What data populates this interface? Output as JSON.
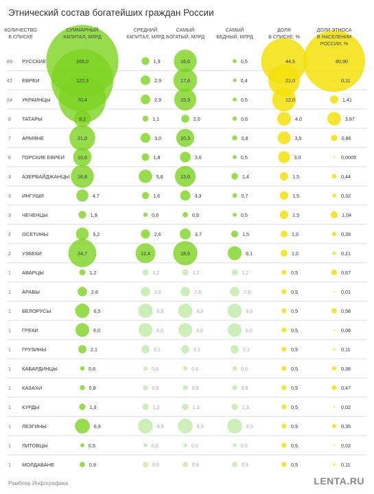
{
  "title": "Этнический состав богатейших граждан России",
  "footer": {
    "left": "Рамблер Инфографика",
    "right": "LENTA.RU"
  },
  "colors": {
    "green": "#7dd321",
    "yellow": "#f4e10b",
    "divider": "#dddddd",
    "muted_green": "#c6ecb0"
  },
  "chart_data": {
    "type": "table",
    "columns": [
      {
        "key": "count",
        "label": [
          "КОЛИЧЕСТВО",
          "В СПИСКЕ"
        ]
      },
      {
        "key": "ethnos",
        "label": []
      },
      {
        "key": "total",
        "label": [
          "СУММАРНЫЙ",
          "КАПИТАЛ, МЛРД"
        ],
        "color": "green"
      },
      {
        "key": "avg",
        "label": [
          "СРЕДНИЙ",
          "КАПИТАЛ, МЛРД"
        ],
        "color": "green"
      },
      {
        "key": "richest",
        "label": [
          "САМЫЙ",
          "БОГАТЫЙ, МЛРД"
        ],
        "color": "green"
      },
      {
        "key": "poorest",
        "label": [
          "САМЫЙ",
          "БЕДНЫЙ, МЛРД"
        ],
        "color": "green"
      },
      {
        "key": "share_list",
        "label": [
          "ДОЛЯ",
          "В СПИСКЕ, %"
        ],
        "color": "yellow"
      },
      {
        "key": "share_pop",
        "label": [
          "ДОЛЯ ЭТНОСА",
          "В НАСЕЛЕНИИ",
          "РОССИИ, %"
        ],
        "color": "yellow"
      }
    ],
    "rows": [
      {
        "count": 89,
        "ethnos": "РУССКИЕ",
        "total": "165,0",
        "avg": "1,9",
        "richest": "16,6",
        "poorest": "0,5",
        "share_list": "44,5",
        "share_pop": "80,90"
      },
      {
        "count": 42,
        "ethnos": "ЕВРЕИ",
        "total": "122,3",
        "avg": "2,9",
        "richest": "17,6",
        "poorest": "0,4",
        "share_list": "21,0",
        "share_pop": "0,11"
      },
      {
        "count": 24,
        "ethnos": "УКРАИНЦЫ",
        "total": "70,4",
        "avg": "2,9",
        "richest": "15,3",
        "poorest": "0,5",
        "share_list": "12,0",
        "share_pop": "1,41"
      },
      {
        "count": 8,
        "ethnos": "ТАТАРЫ",
        "total": "9,2",
        "avg": "1,1",
        "richest": "2,0",
        "poorest": "0,6",
        "share_list": "4,0",
        "share_pop": "3,87"
      },
      {
        "count": 7,
        "ethnos": "АРМЯНЕ",
        "total": "21,0",
        "avg": "3,0",
        "richest": "10,3",
        "poorest": "0,8",
        "share_list": "3,5",
        "share_pop": "0,86"
      },
      {
        "count": 6,
        "ethnos": "ГОРСКИЕ ЕВРЕИ",
        "total": "10,6",
        "avg": "1,8",
        "richest": "3,6",
        "poorest": "0,5",
        "share_list": "3,0",
        "share_pop": "0,0005"
      },
      {
        "count": 3,
        "ethnos": "АЗЕРБАЙДЖАНЦЫ",
        "total": "16,8",
        "avg": "5,6",
        "richest": "13,6",
        "poorest": "1,4",
        "share_list": "1,5",
        "share_pop": "0,44"
      },
      {
        "count": 3,
        "ethnos": "ИНГУШИ",
        "total": "4,7",
        "avg": "1,6",
        "richest": "3,3",
        "poorest": "0,7",
        "share_list": "1,5",
        "share_pop": "0,32"
      },
      {
        "count": 3,
        "ethnos": "ЧЕЧЕНЦЫ",
        "total": "1,9",
        "avg": "0,6",
        "richest": "0,9",
        "poorest": "0,5",
        "share_list": "1,5",
        "share_pop": "1,04"
      },
      {
        "count": 2,
        "ethnos": "ОСЕТИНЫ",
        "total": "5,2",
        "avg": "2,6",
        "richest": "3,7",
        "poorest": "1,5",
        "share_list": "1,0",
        "share_pop": "0,39"
      },
      {
        "count": 2,
        "ethnos": "УЗБЕКИ",
        "total": "24,7",
        "avg": "12,4",
        "richest": "18,6",
        "poorest": "6,1",
        "share_list": "1,0",
        "share_pop": "0,21"
      },
      {
        "count": 1,
        "ethnos": "АВАРЦЫ",
        "total": "1,2",
        "avg": "1,2",
        "richest": "1,2",
        "poorest": "1,2",
        "share_list": "0,5",
        "share_pop": "0,67"
      },
      {
        "count": 1,
        "ethnos": "АРАБЫ",
        "total": "2,8",
        "avg": "2,8",
        "richest": "2,8",
        "poorest": "2,8",
        "share_list": "0,5",
        "share_pop": "0,01"
      },
      {
        "count": 1,
        "ethnos": "БЕЛОРУСЫ",
        "total": "6,5",
        "avg": "6,5",
        "richest": "6,5",
        "poorest": "6,5",
        "share_list": "0,5",
        "share_pop": "0,58"
      },
      {
        "count": 1,
        "ethnos": "ГРЕКИ",
        "total": "6,0",
        "avg": "6,0",
        "richest": "6,0",
        "poorest": "6,0",
        "share_list": "0,5",
        "share_pop": "0,06"
      },
      {
        "count": 1,
        "ethnos": "ГРУЗИНЫ",
        "total": "2,1",
        "avg": "2,1",
        "richest": "2,1",
        "poorest": "2,1",
        "share_list": "0,5",
        "share_pop": "0,11"
      },
      {
        "count": 1,
        "ethnos": "КАБАРДИНЦЫ",
        "total": "0,6",
        "avg": "0,6",
        "richest": "0,6",
        "poorest": "0,6",
        "share_list": "0,5",
        "share_pop": "0,38"
      },
      {
        "count": 1,
        "ethnos": "КАЗАХИ",
        "total": "0,8",
        "avg": "0,8",
        "richest": "0,8",
        "poorest": "0,8",
        "share_list": "0,5",
        "share_pop": "0,47"
      },
      {
        "count": 1,
        "ethnos": "КУРДЫ",
        "total": "1,3",
        "avg": "1,3",
        "richest": "1,3",
        "poorest": "1,3",
        "share_list": "0,5",
        "share_pop": "0,02"
      },
      {
        "count": 1,
        "ethnos": "ЛЕЗГИНЫ",
        "total": "6,9",
        "avg": "6,9",
        "richest": "6,9",
        "poorest": "6,9",
        "share_list": "0,5",
        "share_pop": "0,35"
      },
      {
        "count": 1,
        "ethnos": "ЛИТОВЦЫ",
        "total": "0,5",
        "avg": "0,5",
        "richest": "0,5",
        "poorest": "0,5",
        "share_list": "0,5",
        "share_pop": "0,02"
      },
      {
        "count": 1,
        "ethnos": "МОЛДАВАНЕ",
        "total": "0,9",
        "avg": "0,9",
        "richest": "0,9",
        "poorest": "0,9",
        "share_list": "0,5",
        "share_pop": "0,11"
      }
    ]
  }
}
